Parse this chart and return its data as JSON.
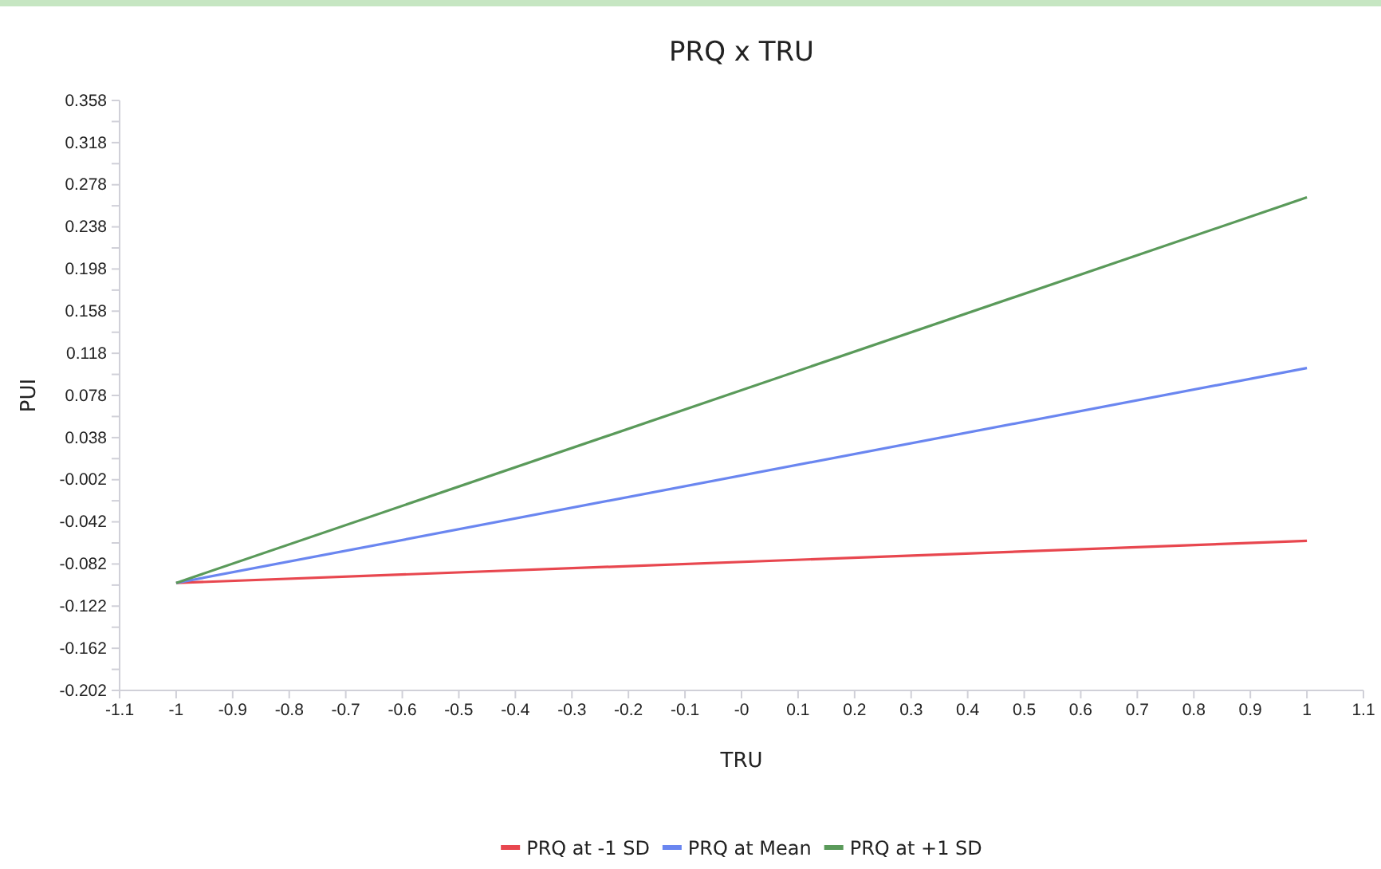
{
  "chart_data": {
    "type": "line",
    "title": "PRQ x TRU",
    "xlabel": "TRU",
    "ylabel": "PUI",
    "x": [
      -1,
      1
    ],
    "series": [
      {
        "name": "PRQ at -1 SD",
        "color": "#e8474f",
        "values": [
          -0.1,
          -0.06
        ]
      },
      {
        "name": "PRQ at Mean",
        "color": "#6a86f0",
        "values": [
          -0.1,
          0.104
        ]
      },
      {
        "name": "PRQ at +1 SD",
        "color": "#5a9a5a",
        "values": [
          -0.1,
          0.266
        ]
      }
    ],
    "xlim": [
      -1.1,
      1.1
    ],
    "xticks": [
      -1.1,
      -1,
      -0.9,
      -0.8,
      -0.7,
      -0.6,
      -0.5,
      -0.4,
      -0.3,
      -0.2,
      -0.1,
      {
        "value": 0,
        "label": "-0"
      },
      0.1,
      0.2,
      0.3,
      0.4,
      0.5,
      0.6,
      0.7,
      0.8,
      0.9,
      1,
      1.1
    ],
    "ylim": [
      -0.202,
      0.358
    ],
    "yticks": [
      -0.202,
      {
        "value": -0.182,
        "label": null
      },
      -0.162,
      {
        "value": -0.142,
        "label": null
      },
      -0.122,
      {
        "value": -0.102,
        "label": null
      },
      -0.082,
      {
        "value": -0.062,
        "label": null
      },
      -0.042,
      {
        "value": -0.022,
        "label": null
      },
      -0.002,
      {
        "value": 0.018,
        "label": null
      },
      0.038,
      {
        "value": 0.058,
        "label": null
      },
      0.078,
      {
        "value": 0.098,
        "label": null
      },
      0.118,
      {
        "value": 0.138,
        "label": null
      },
      0.158,
      {
        "value": 0.178,
        "label": null
      },
      0.198,
      {
        "value": 0.218,
        "label": null
      },
      0.238,
      {
        "value": 0.258,
        "label": null
      },
      0.278,
      {
        "value": 0.298,
        "label": null
      },
      0.318,
      {
        "value": 0.338,
        "label": null
      },
      0.358
    ],
    "legend": "bottom",
    "marker": "none",
    "line_style": "solid"
  }
}
